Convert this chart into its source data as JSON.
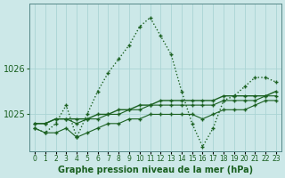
{
  "title": "Graphe pression niveau de la mer (hPa)",
  "bg_color": "#cce8e8",
  "grid_color": "#aad4d4",
  "line_color": "#1a6020",
  "hours": [
    0,
    1,
    2,
    3,
    4,
    5,
    6,
    7,
    8,
    9,
    10,
    11,
    12,
    13,
    14,
    15,
    16,
    17,
    18,
    19,
    20,
    21,
    22,
    23
  ],
  "x_labels": [
    "0",
    "1",
    "2",
    "3",
    "4",
    "5",
    "6",
    "7",
    "8",
    "9",
    "10",
    "11",
    "12",
    "13",
    "14",
    "15",
    "16",
    "17",
    "18",
    "19",
    "20",
    "21",
    "22",
    "23"
  ],
  "line_dotted": [
    1024.7,
    1024.6,
    1024.8,
    1025.2,
    1024.5,
    1025.0,
    1025.5,
    1025.9,
    1026.2,
    1026.5,
    1026.9,
    1027.1,
    1026.7,
    1026.3,
    1025.5,
    1024.8,
    1024.3,
    1024.7,
    1025.3,
    1025.4,
    1025.6,
    1025.8,
    1025.8,
    1025.7
  ],
  "line_solid1": [
    1024.8,
    1024.8,
    1024.9,
    1024.9,
    1024.9,
    1024.9,
    1025.0,
    1025.0,
    1025.1,
    1025.1,
    1025.2,
    1025.2,
    1025.3,
    1025.3,
    1025.3,
    1025.3,
    1025.3,
    1025.3,
    1025.4,
    1025.4,
    1025.4,
    1025.4,
    1025.4,
    1025.5
  ],
  "line_solid2": [
    1024.8,
    1024.8,
    1024.9,
    1024.9,
    1024.8,
    1024.9,
    1024.9,
    1025.0,
    1025.0,
    1025.1,
    1025.1,
    1025.2,
    1025.2,
    1025.2,
    1025.2,
    1025.2,
    1025.2,
    1025.2,
    1025.3,
    1025.3,
    1025.3,
    1025.3,
    1025.4,
    1025.4
  ],
  "line_solid3": [
    1024.7,
    1024.6,
    1024.6,
    1024.7,
    1024.5,
    1024.6,
    1024.7,
    1024.8,
    1024.8,
    1024.9,
    1024.9,
    1025.0,
    1025.0,
    1025.0,
    1025.0,
    1025.0,
    1024.9,
    1025.0,
    1025.1,
    1025.1,
    1025.1,
    1025.2,
    1025.3,
    1025.3
  ],
  "ylim": [
    1024.2,
    1027.4
  ],
  "yticks": [
    1025,
    1026
  ],
  "ylabel_fs": 7,
  "xlabel_fs": 5.5,
  "title_fs": 7
}
